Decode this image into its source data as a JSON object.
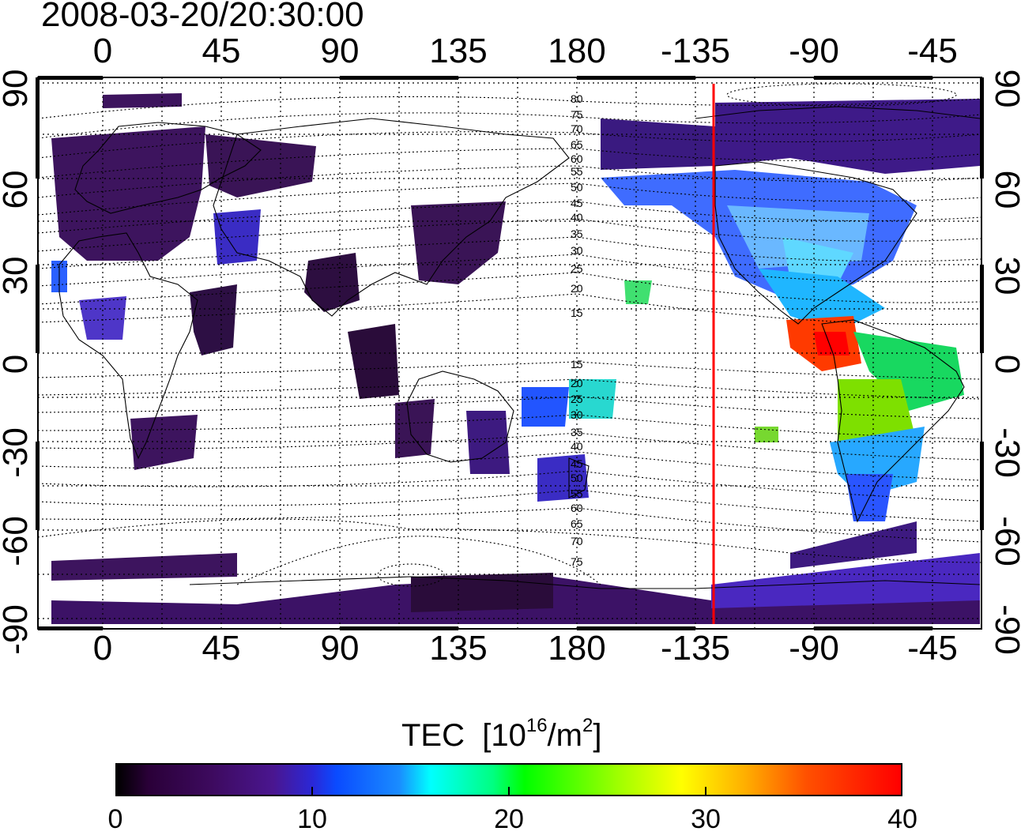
{
  "title": "2008-03-20/20:30:00",
  "map": {
    "lon_ticks": [
      "0",
      "45",
      "90",
      "135",
      "180",
      "-135",
      "-90",
      "-45"
    ],
    "lat_ticks": [
      "90",
      "60",
      "30",
      "0",
      "-30",
      "-60",
      "-90"
    ],
    "lon_range": [
      -24,
      336
    ],
    "lat_range": [
      -90,
      90
    ],
    "terminator_lon": -128,
    "terminator_color": "#ff0000",
    "contour_labels_north": [
      "80",
      "75",
      "70",
      "65",
      "60",
      "55",
      "50",
      "45",
      "40",
      "35",
      "30",
      "25",
      "20",
      "15"
    ],
    "contour_labels_south": [
      "15",
      "20",
      "25",
      "30",
      "35",
      "40",
      "45",
      "50",
      "55",
      "60",
      "65",
      "70",
      "75"
    ]
  },
  "colorbar": {
    "label": "TEC",
    "unit_base": "[10",
    "unit_exp": "16",
    "unit_mid": "/m",
    "unit_exp2": "2",
    "unit_end": "]",
    "ticks": [
      "0",
      "10",
      "20",
      "30",
      "40"
    ],
    "range": [
      0,
      40
    ]
  }
}
